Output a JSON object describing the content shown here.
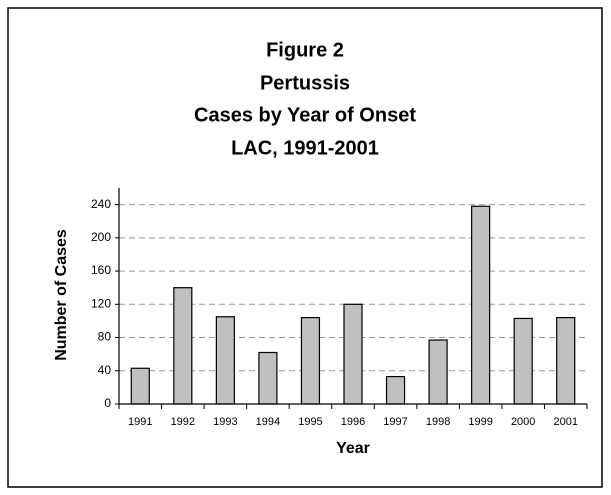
{
  "chart_data": {
    "type": "bar",
    "title": [
      "Figure 2",
      "Pertussis",
      "Cases by Year of Onset",
      "LAC, 1991-2001"
    ],
    "xlabel": "Year",
    "ylabel": "Number of Cases",
    "categories": [
      "1991",
      "1992",
      "1993",
      "1994",
      "1995",
      "1996",
      "1997",
      "1998",
      "1999",
      "2000",
      "2001"
    ],
    "values": [
      43,
      140,
      105,
      62,
      104,
      120,
      33,
      77,
      238,
      103,
      104
    ],
    "color": "#c0c0c0",
    "ylim": [
      0,
      260
    ],
    "yticks": [
      0,
      40,
      80,
      120,
      160,
      200,
      240
    ],
    "grid": true
  }
}
